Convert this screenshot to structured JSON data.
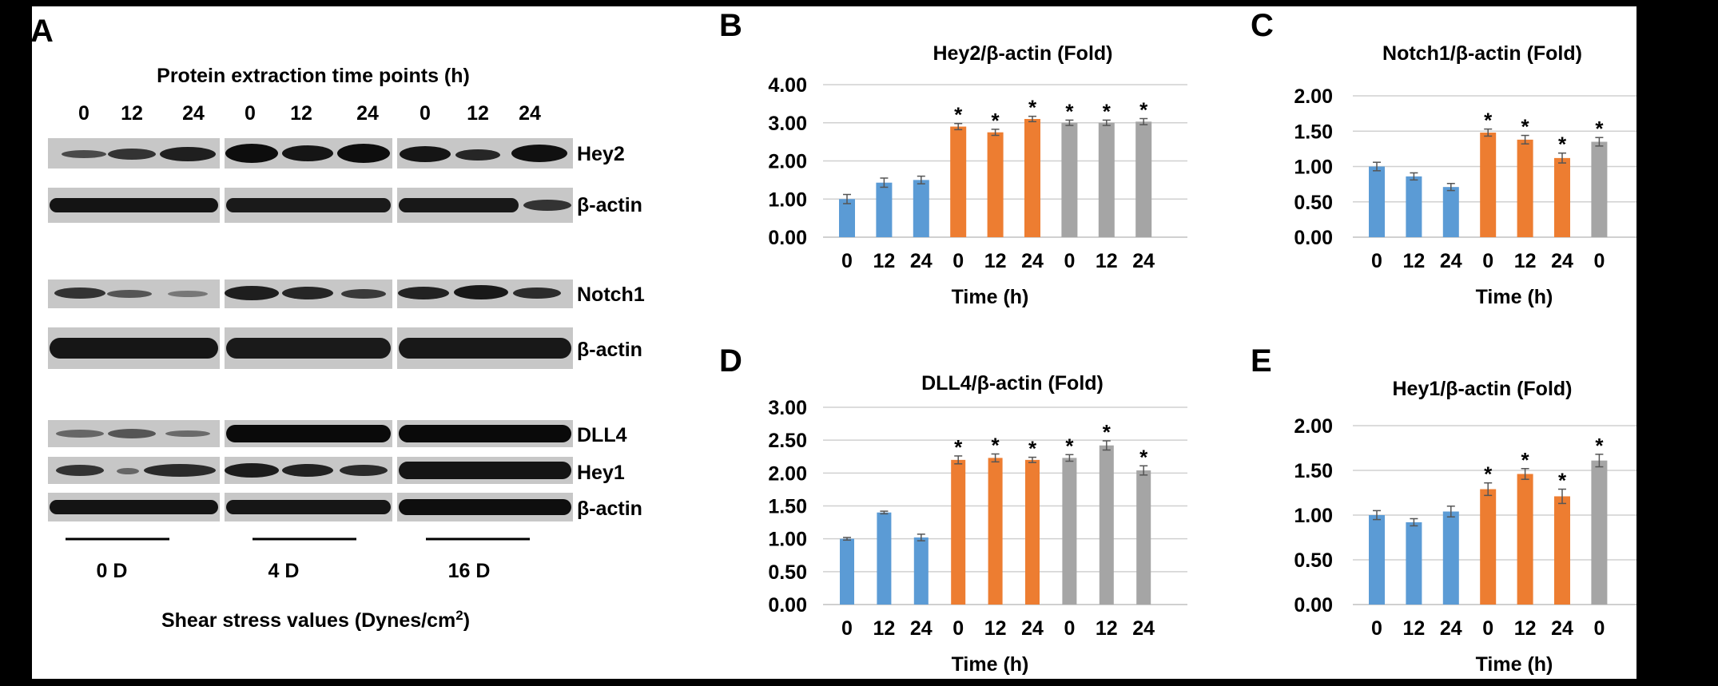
{
  "panel_a": {
    "letter": "A",
    "header": "Protein extraction time points (h)",
    "time_labels": [
      "0",
      "12",
      "24",
      "0",
      "12",
      "24",
      "0",
      "12",
      "24"
    ],
    "blot_labels": [
      "Hey2",
      "β-actin",
      "Notch1",
      "β-actin",
      "DLL4",
      "Hey1",
      "β-actin"
    ],
    "groups": [
      "0 D",
      "4 D",
      "16 D"
    ],
    "footer_prefix": "Shear stress values (Dynes/cm",
    "footer_sup": "2",
    "footer_suffix": ")"
  },
  "colors": {
    "blue": "#5B9BD5",
    "orange": "#ED7D31",
    "gray": "#A5A5A5",
    "gridline": "#D0D0D0",
    "background": "#000000"
  },
  "chart_data": [
    {
      "letter": "B",
      "type": "bar",
      "title": "Hey2/β-actin (Fold)",
      "xlabel": "Time (h)",
      "categories": [
        "0",
        "12",
        "24",
        "0",
        "12",
        "24",
        "0",
        "12",
        "24"
      ],
      "values": [
        1.0,
        1.43,
        1.5,
        2.9,
        2.75,
        3.1,
        3.0,
        3.0,
        3.03
      ],
      "errors": [
        0.12,
        0.12,
        0.1,
        0.08,
        0.08,
        0.07,
        0.07,
        0.07,
        0.08
      ],
      "significant": [
        false,
        false,
        false,
        true,
        true,
        true,
        true,
        true,
        true
      ],
      "color_groups": [
        "blue",
        "blue",
        "blue",
        "orange",
        "orange",
        "orange",
        "gray",
        "gray",
        "gray"
      ],
      "yticks": [
        "0.00",
        "1.00",
        "2.00",
        "3.00",
        "4.00"
      ],
      "ylim": [
        0,
        4
      ],
      "grid": true
    },
    {
      "letter": "C",
      "type": "bar",
      "title": "Notch1/β-actin (Fold)",
      "xlabel": "Time (h)",
      "categories": [
        "0",
        "12",
        "24",
        "0",
        "12",
        "24",
        "0"
      ],
      "values": [
        1.0,
        0.86,
        0.71,
        1.48,
        1.38,
        1.12,
        1.35
      ],
      "errors": [
        0.06,
        0.05,
        0.05,
        0.05,
        0.06,
        0.07,
        0.06
      ],
      "significant": [
        false,
        false,
        false,
        true,
        true,
        true,
        true
      ],
      "color_groups": [
        "blue",
        "blue",
        "blue",
        "orange",
        "orange",
        "orange",
        "gray"
      ],
      "yticks": [
        "0.00",
        "0.50",
        "1.00",
        "1.50",
        "2.00"
      ],
      "ylim": [
        0,
        2
      ],
      "grid": true
    },
    {
      "letter": "D",
      "type": "bar",
      "title": "DLL4/β-actin (Fold)",
      "xlabel": "Time (h)",
      "categories": [
        "0",
        "12",
        "24",
        "0",
        "12",
        "24",
        "0",
        "12",
        "24"
      ],
      "values": [
        1.0,
        1.4,
        1.02,
        2.2,
        2.23,
        2.2,
        2.23,
        2.42,
        2.04
      ],
      "errors": [
        0.02,
        0.02,
        0.05,
        0.06,
        0.06,
        0.04,
        0.05,
        0.07,
        0.07
      ],
      "significant": [
        false,
        false,
        false,
        true,
        true,
        true,
        true,
        true,
        true
      ],
      "color_groups": [
        "blue",
        "blue",
        "blue",
        "orange",
        "orange",
        "orange",
        "gray",
        "gray",
        "gray"
      ],
      "yticks": [
        "0.00",
        "0.50",
        "1.00",
        "1.50",
        "2.00",
        "2.50",
        "3.00"
      ],
      "ylim": [
        0,
        3
      ],
      "grid": true
    },
    {
      "letter": "E",
      "type": "bar",
      "title": "Hey1/β-actin (Fold)",
      "xlabel": "Time (h)",
      "categories": [
        "0",
        "12",
        "24",
        "0",
        "12",
        "24",
        "0"
      ],
      "values": [
        1.0,
        0.92,
        1.04,
        1.29,
        1.46,
        1.21,
        1.61
      ],
      "errors": [
        0.05,
        0.04,
        0.06,
        0.07,
        0.06,
        0.08,
        0.07
      ],
      "significant": [
        false,
        false,
        false,
        true,
        true,
        true,
        true
      ],
      "color_groups": [
        "blue",
        "blue",
        "blue",
        "orange",
        "orange",
        "orange",
        "gray"
      ],
      "yticks": [
        "0.00",
        "0.50",
        "1.00",
        "1.50",
        "2.00"
      ],
      "ylim": [
        0,
        2
      ],
      "grid": true
    }
  ]
}
